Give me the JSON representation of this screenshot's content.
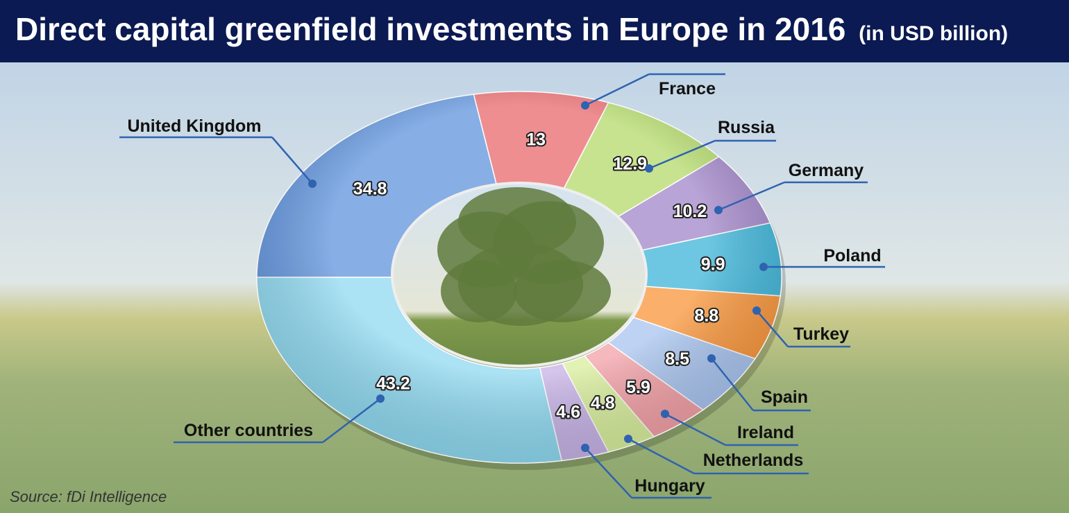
{
  "chart_data": {
    "type": "donut",
    "title": "Direct capital greenfield investments in Europe in 2016",
    "subtitle": "(in USD billion)",
    "source": "Source: fDi Intelligence",
    "categories": [
      "United Kingdom",
      "France",
      "Russia",
      "Germany",
      "Poland",
      "Turkey",
      "Spain",
      "Ireland",
      "Netherlands",
      "Hungary",
      "Other countries"
    ],
    "values": [
      34.8,
      13,
      12.9,
      10.2,
      9.9,
      8.8,
      8.5,
      5.9,
      4.8,
      4.6,
      43.2
    ],
    "colors": [
      "#5f93dc",
      "#e8696c",
      "#b4da6a",
      "#a185c8",
      "#3cb4d8",
      "#f9963a",
      "#a8c4ef",
      "#f2a0a6",
      "#d8ee9c",
      "#c7b2e6",
      "#8fd9f0"
    ]
  }
}
